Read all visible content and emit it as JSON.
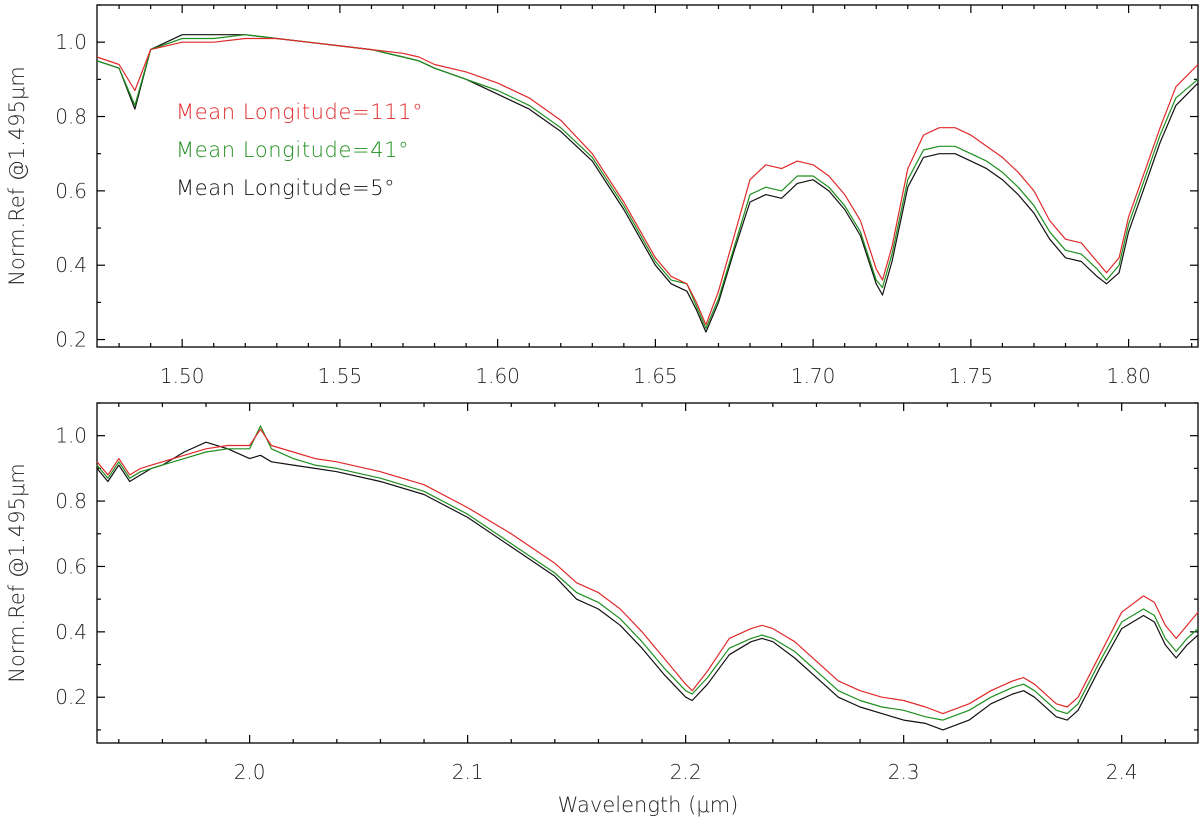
{
  "colors": {
    "red": "#e02a2a",
    "green": "#1f8f1f",
    "black": "#111111"
  },
  "chart_data": [
    {
      "type": "line",
      "title": "",
      "xlabel": "",
      "ylabel": "Norm.Ref @1.495μm",
      "xlim": [
        1.473,
        1.822
      ],
      "ylim": [
        0.18,
        1.1
      ],
      "grid": false,
      "legend_position": "upper-left",
      "xticks": [
        1.5,
        1.55,
        1.6,
        1.65,
        1.7,
        1.75,
        1.8
      ],
      "xtick_labels": [
        "1.50",
        "1.55",
        "1.60",
        "1.65",
        "1.70",
        "1.75",
        "1.80"
      ],
      "yticks": [
        0.2,
        0.4,
        0.6,
        0.8,
        1.0
      ],
      "ytick_labels": [
        "0.2",
        "0.4",
        "0.6",
        "0.8",
        "1.0"
      ],
      "series": [
        {
          "name": "Mean Longitude=111°",
          "color": "#e02a2a",
          "x": [
            1.473,
            1.48,
            1.485,
            1.49,
            1.5,
            1.51,
            1.52,
            1.53,
            1.54,
            1.55,
            1.56,
            1.57,
            1.575,
            1.58,
            1.59,
            1.6,
            1.61,
            1.62,
            1.63,
            1.64,
            1.65,
            1.655,
            1.66,
            1.663,
            1.666,
            1.67,
            1.675,
            1.68,
            1.685,
            1.69,
            1.695,
            1.7,
            1.705,
            1.71,
            1.715,
            1.72,
            1.722,
            1.725,
            1.73,
            1.735,
            1.74,
            1.745,
            1.75,
            1.755,
            1.76,
            1.765,
            1.77,
            1.775,
            1.78,
            1.785,
            1.79,
            1.793,
            1.797,
            1.8,
            1.805,
            1.81,
            1.815,
            1.822
          ],
          "y": [
            0.96,
            0.94,
            0.87,
            0.98,
            1.0,
            1.0,
            1.01,
            1.01,
            1.0,
            0.99,
            0.98,
            0.97,
            0.96,
            0.94,
            0.92,
            0.89,
            0.85,
            0.79,
            0.7,
            0.57,
            0.42,
            0.37,
            0.35,
            0.3,
            0.24,
            0.33,
            0.48,
            0.63,
            0.67,
            0.66,
            0.68,
            0.67,
            0.64,
            0.59,
            0.52,
            0.39,
            0.36,
            0.45,
            0.66,
            0.75,
            0.77,
            0.77,
            0.75,
            0.72,
            0.69,
            0.65,
            0.6,
            0.52,
            0.47,
            0.46,
            0.41,
            0.38,
            0.42,
            0.53,
            0.65,
            0.77,
            0.88,
            0.94
          ]
        },
        {
          "name": "Mean Longitude=41°",
          "color": "#1f8f1f",
          "x": [
            1.473,
            1.48,
            1.485,
            1.49,
            1.5,
            1.51,
            1.52,
            1.53,
            1.54,
            1.55,
            1.56,
            1.57,
            1.575,
            1.58,
            1.59,
            1.6,
            1.61,
            1.62,
            1.63,
            1.64,
            1.65,
            1.655,
            1.66,
            1.663,
            1.666,
            1.67,
            1.675,
            1.68,
            1.685,
            1.69,
            1.695,
            1.7,
            1.705,
            1.71,
            1.715,
            1.72,
            1.722,
            1.725,
            1.73,
            1.735,
            1.74,
            1.745,
            1.75,
            1.755,
            1.76,
            1.765,
            1.77,
            1.775,
            1.78,
            1.785,
            1.79,
            1.793,
            1.797,
            1.8,
            1.805,
            1.81,
            1.815,
            1.822
          ],
          "y": [
            0.95,
            0.93,
            0.83,
            0.98,
            1.01,
            1.01,
            1.02,
            1.01,
            1.0,
            0.99,
            0.98,
            0.96,
            0.95,
            0.93,
            0.9,
            0.87,
            0.83,
            0.77,
            0.69,
            0.56,
            0.41,
            0.36,
            0.35,
            0.29,
            0.23,
            0.31,
            0.45,
            0.59,
            0.61,
            0.6,
            0.64,
            0.64,
            0.61,
            0.56,
            0.49,
            0.36,
            0.34,
            0.43,
            0.63,
            0.71,
            0.72,
            0.72,
            0.7,
            0.68,
            0.65,
            0.61,
            0.56,
            0.49,
            0.44,
            0.43,
            0.39,
            0.36,
            0.4,
            0.51,
            0.63,
            0.75,
            0.85,
            0.9
          ]
        },
        {
          "name": "Mean Longitude=5°",
          "color": "#111111",
          "x": [
            1.473,
            1.48,
            1.485,
            1.49,
            1.5,
            1.51,
            1.52,
            1.53,
            1.54,
            1.55,
            1.56,
            1.57,
            1.575,
            1.58,
            1.59,
            1.6,
            1.61,
            1.62,
            1.63,
            1.64,
            1.65,
            1.655,
            1.66,
            1.663,
            1.666,
            1.67,
            1.675,
            1.68,
            1.685,
            1.69,
            1.695,
            1.7,
            1.705,
            1.71,
            1.715,
            1.72,
            1.722,
            1.725,
            1.73,
            1.735,
            1.74,
            1.745,
            1.75,
            1.755,
            1.76,
            1.765,
            1.77,
            1.775,
            1.78,
            1.785,
            1.79,
            1.793,
            1.797,
            1.8,
            1.805,
            1.81,
            1.815,
            1.822
          ],
          "y": [
            0.95,
            0.93,
            0.82,
            0.98,
            1.02,
            1.02,
            1.02,
            1.01,
            1.0,
            0.99,
            0.98,
            0.96,
            0.95,
            0.93,
            0.9,
            0.86,
            0.82,
            0.76,
            0.68,
            0.55,
            0.4,
            0.35,
            0.33,
            0.28,
            0.22,
            0.3,
            0.44,
            0.57,
            0.59,
            0.58,
            0.62,
            0.63,
            0.6,
            0.55,
            0.48,
            0.35,
            0.32,
            0.41,
            0.61,
            0.69,
            0.7,
            0.7,
            0.68,
            0.66,
            0.63,
            0.59,
            0.54,
            0.47,
            0.42,
            0.41,
            0.37,
            0.35,
            0.38,
            0.49,
            0.61,
            0.73,
            0.83,
            0.89
          ]
        }
      ]
    },
    {
      "type": "line",
      "title": "",
      "xlabel": "Wavelength (μm)",
      "ylabel": "Norm.Ref @1.495μm",
      "xlim": [
        1.93,
        2.435
      ],
      "ylim": [
        0.06,
        1.1
      ],
      "grid": false,
      "xticks": [
        2.0,
        2.1,
        2.2,
        2.3,
        2.4
      ],
      "xtick_labels": [
        "2.0",
        "2.1",
        "2.2",
        "2.3",
        "2.4"
      ],
      "yticks": [
        0.2,
        0.4,
        0.6,
        0.8,
        1.0
      ],
      "ytick_labels": [
        "0.2",
        "0.4",
        "0.6",
        "0.8",
        "1.0"
      ],
      "series": [
        {
          "name": "Mean Longitude=111°",
          "color": "#e02a2a",
          "x": [
            1.93,
            1.935,
            1.94,
            1.945,
            1.95,
            1.955,
            1.96,
            1.97,
            1.98,
            1.99,
            2.0,
            2.005,
            2.01,
            2.02,
            2.03,
            2.04,
            2.06,
            2.08,
            2.1,
            2.12,
            2.14,
            2.15,
            2.16,
            2.17,
            2.18,
            2.19,
            2.2,
            2.203,
            2.21,
            2.22,
            2.23,
            2.235,
            2.24,
            2.25,
            2.26,
            2.27,
            2.28,
            2.29,
            2.3,
            2.31,
            2.318,
            2.33,
            2.34,
            2.35,
            2.355,
            2.36,
            2.37,
            2.375,
            2.38,
            2.39,
            2.4,
            2.41,
            2.415,
            2.42,
            2.425,
            2.43,
            2.435
          ],
          "y": [
            0.92,
            0.88,
            0.93,
            0.88,
            0.9,
            0.91,
            0.92,
            0.94,
            0.96,
            0.97,
            0.97,
            1.02,
            0.97,
            0.95,
            0.93,
            0.92,
            0.89,
            0.85,
            0.78,
            0.7,
            0.61,
            0.55,
            0.52,
            0.47,
            0.4,
            0.32,
            0.24,
            0.22,
            0.28,
            0.38,
            0.41,
            0.42,
            0.41,
            0.37,
            0.31,
            0.25,
            0.22,
            0.2,
            0.19,
            0.17,
            0.15,
            0.18,
            0.22,
            0.25,
            0.26,
            0.24,
            0.18,
            0.17,
            0.2,
            0.33,
            0.46,
            0.51,
            0.49,
            0.42,
            0.38,
            0.42,
            0.46
          ]
        },
        {
          "name": "Mean Longitude=41°",
          "color": "#1f8f1f",
          "x": [
            1.93,
            1.935,
            1.94,
            1.945,
            1.95,
            1.955,
            1.96,
            1.97,
            1.98,
            1.99,
            2.0,
            2.005,
            2.01,
            2.02,
            2.03,
            2.04,
            2.06,
            2.08,
            2.1,
            2.12,
            2.14,
            2.15,
            2.16,
            2.17,
            2.18,
            2.19,
            2.2,
            2.203,
            2.21,
            2.22,
            2.23,
            2.235,
            2.24,
            2.25,
            2.26,
            2.27,
            2.28,
            2.29,
            2.3,
            2.31,
            2.318,
            2.33,
            2.34,
            2.35,
            2.355,
            2.36,
            2.37,
            2.375,
            2.38,
            2.39,
            2.4,
            2.41,
            2.415,
            2.42,
            2.425,
            2.43,
            2.435
          ],
          "y": [
            0.91,
            0.87,
            0.92,
            0.87,
            0.89,
            0.9,
            0.91,
            0.93,
            0.95,
            0.96,
            0.96,
            1.03,
            0.96,
            0.93,
            0.91,
            0.9,
            0.87,
            0.83,
            0.76,
            0.67,
            0.58,
            0.52,
            0.49,
            0.44,
            0.37,
            0.29,
            0.22,
            0.21,
            0.26,
            0.35,
            0.38,
            0.39,
            0.38,
            0.34,
            0.28,
            0.22,
            0.19,
            0.17,
            0.16,
            0.14,
            0.13,
            0.16,
            0.2,
            0.23,
            0.24,
            0.22,
            0.16,
            0.15,
            0.18,
            0.31,
            0.43,
            0.47,
            0.45,
            0.38,
            0.34,
            0.38,
            0.41
          ]
        },
        {
          "name": "Mean Longitude=5°",
          "color": "#111111",
          "x": [
            1.93,
            1.935,
            1.94,
            1.945,
            1.95,
            1.955,
            1.96,
            1.97,
            1.98,
            1.99,
            2.0,
            2.005,
            2.01,
            2.02,
            2.03,
            2.04,
            2.06,
            2.08,
            2.1,
            2.12,
            2.14,
            2.15,
            2.16,
            2.17,
            2.18,
            2.19,
            2.2,
            2.203,
            2.21,
            2.22,
            2.23,
            2.235,
            2.24,
            2.25,
            2.26,
            2.27,
            2.28,
            2.29,
            2.3,
            2.31,
            2.318,
            2.33,
            2.34,
            2.35,
            2.355,
            2.36,
            2.37,
            2.375,
            2.38,
            2.39,
            2.4,
            2.41,
            2.415,
            2.42,
            2.425,
            2.43,
            2.435
          ],
          "y": [
            0.9,
            0.86,
            0.91,
            0.86,
            0.88,
            0.9,
            0.91,
            0.95,
            0.98,
            0.96,
            0.93,
            0.94,
            0.92,
            0.91,
            0.9,
            0.89,
            0.86,
            0.82,
            0.75,
            0.66,
            0.57,
            0.5,
            0.47,
            0.42,
            0.35,
            0.27,
            0.2,
            0.19,
            0.24,
            0.33,
            0.37,
            0.38,
            0.37,
            0.32,
            0.26,
            0.2,
            0.17,
            0.15,
            0.13,
            0.12,
            0.1,
            0.13,
            0.18,
            0.21,
            0.22,
            0.2,
            0.14,
            0.13,
            0.16,
            0.29,
            0.41,
            0.45,
            0.43,
            0.36,
            0.32,
            0.36,
            0.39
          ]
        }
      ]
    }
  ]
}
